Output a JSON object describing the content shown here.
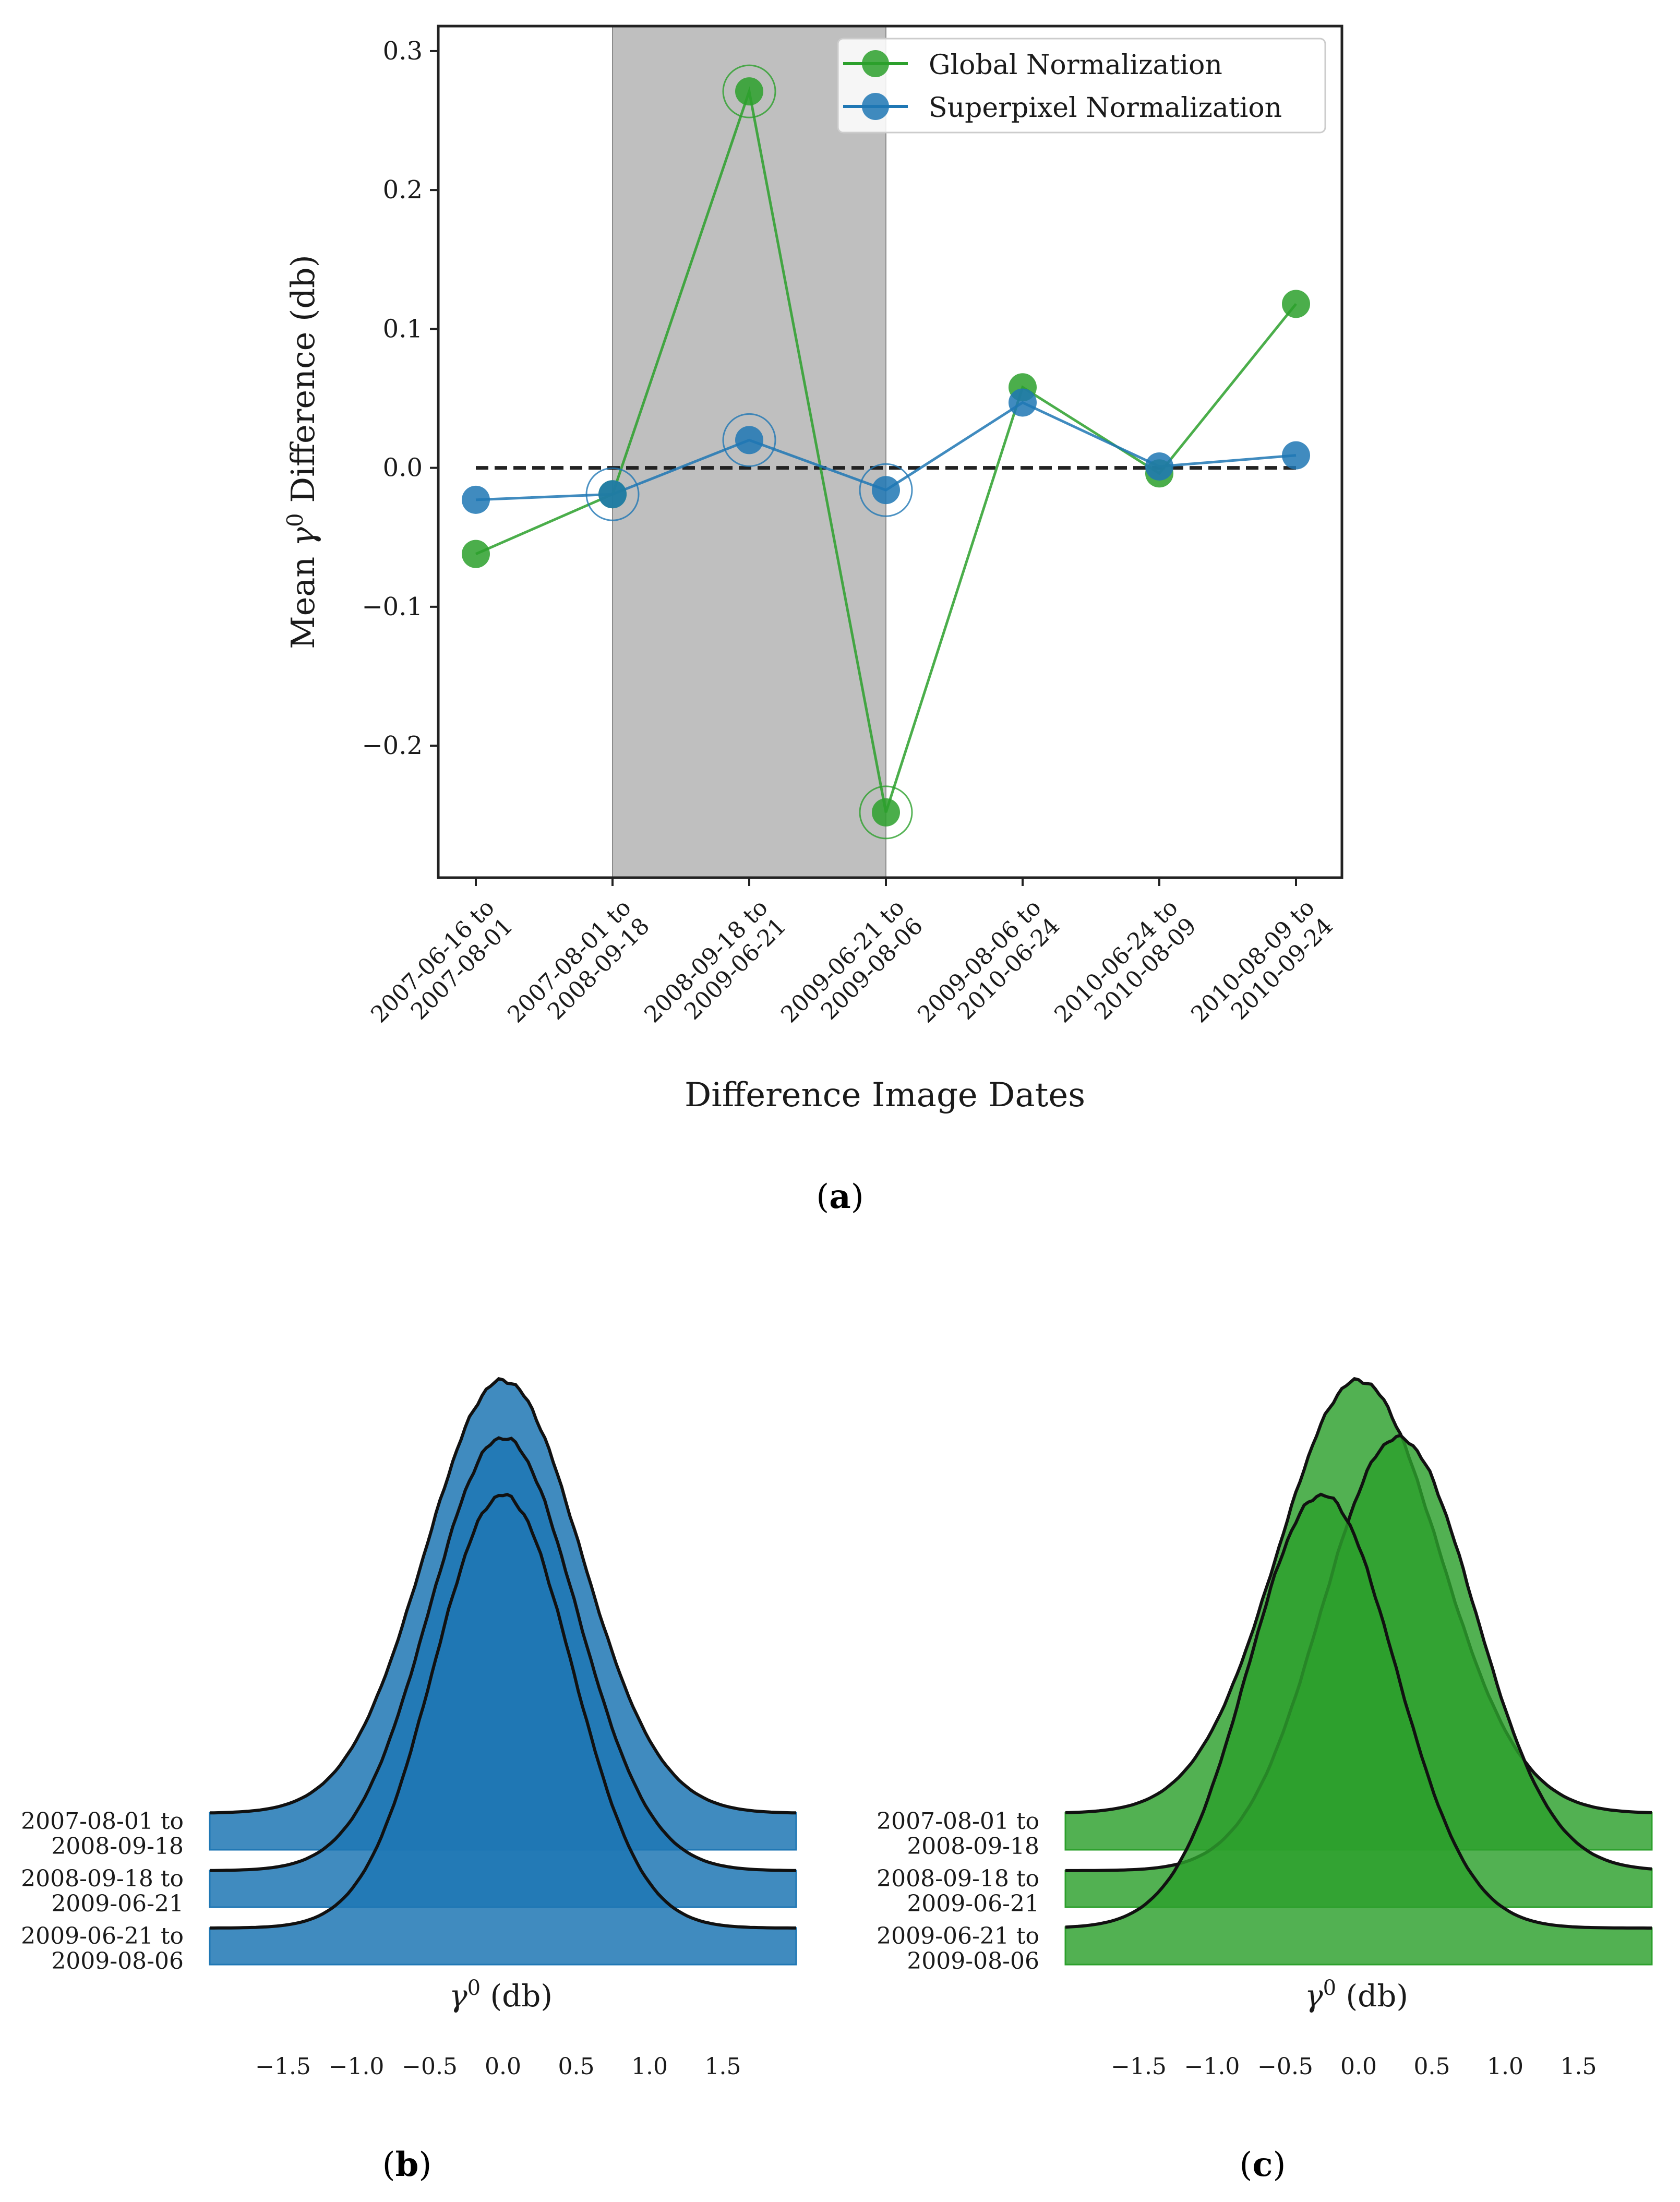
{
  "chart_data": [
    {
      "type": "line",
      "panel_label": "a",
      "title": "",
      "xlabel": "Difference Image Dates",
      "ylabel_prefix": "Mean ",
      "ylabel_symbol": "γ",
      "ylabel_sup": "0",
      "ylabel_suffix": " Difference (db)",
      "categories": [
        [
          "2007-06-16 to",
          "2007-08-01"
        ],
        [
          "2007-08-01 to",
          "2008-09-18"
        ],
        [
          "2008-09-18 to",
          "2009-06-21"
        ],
        [
          "2009-06-21 to",
          "2009-08-06"
        ],
        [
          "2009-08-06 to",
          "2010-06-24"
        ],
        [
          "2010-06-24 to",
          "2010-08-09"
        ],
        [
          "2010-08-09 to",
          "2010-09-24"
        ]
      ],
      "yticks": [
        -0.2,
        -0.1,
        0.0,
        0.1,
        0.2,
        0.3
      ],
      "ytick_labels": [
        "−0.2",
        "−0.1",
        "0.0",
        "0.1",
        "0.2",
        "0.3"
      ],
      "ylim": [
        -0.295,
        0.318
      ],
      "shaded_category_range": [
        1,
        3
      ],
      "reference_line_y": 0.0,
      "circled_indices": [
        1,
        2,
        3
      ],
      "legend_position": "top-right",
      "series": [
        {
          "name": "Global Normalization",
          "color": "#2ca02c",
          "values": [
            -0.062,
            -0.019,
            0.271,
            -0.248,
            0.058,
            -0.004,
            0.118
          ]
        },
        {
          "name": "Superpixel Normalization",
          "color": "#1f77b4",
          "values": [
            -0.023,
            -0.019,
            0.02,
            -0.016,
            0.047,
            0.001,
            0.009
          ]
        }
      ]
    },
    {
      "type": "ridgeline",
      "panel_label": "b",
      "xlabel_symbol": "γ",
      "xlabel_sup": "0",
      "xlabel_suffix": " (db)",
      "color": "#1f77b4",
      "xticks": [
        -1.5,
        -1.0,
        -0.5,
        0.0,
        0.5,
        1.0,
        1.5
      ],
      "xtick_labels": [
        "−1.5",
        "−1.0",
        "−0.5",
        "0.0",
        "0.5",
        "1.0",
        "1.5"
      ],
      "xlim": [
        -2.0,
        2.0
      ],
      "rows": [
        {
          "label": [
            "2007-08-01 to",
            "2008-09-18"
          ],
          "mean": 0.0,
          "std": 0.53
        },
        {
          "label": [
            "2008-09-18 to",
            "2009-06-21"
          ],
          "mean": 0.0,
          "std": 0.5
        },
        {
          "label": [
            "2009-06-21 to",
            "2009-08-06"
          ],
          "mean": 0.0,
          "std": 0.47
        }
      ]
    },
    {
      "type": "ridgeline",
      "panel_label": "c",
      "xlabel_symbol": "γ",
      "xlabel_sup": "0",
      "xlabel_suffix": " (db)",
      "color": "#2ca02c",
      "xticks": [
        -1.5,
        -1.0,
        -0.5,
        0.0,
        0.5,
        1.0,
        1.5
      ],
      "xtick_labels": [
        "−1.5",
        "−1.0",
        "−0.5",
        "0.0",
        "0.5",
        "1.0",
        "1.5"
      ],
      "xlim": [
        -2.0,
        2.0
      ],
      "rows": [
        {
          "label": [
            "2007-08-01 to",
            "2008-09-18"
          ],
          "mean": 0.0,
          "std": 0.55
        },
        {
          "label": [
            "2008-09-18 to",
            "2009-06-21"
          ],
          "mean": 0.27,
          "std": 0.52
        },
        {
          "label": [
            "2009-06-21 to",
            "2009-08-06"
          ],
          "mean": -0.25,
          "std": 0.5
        }
      ]
    }
  ]
}
